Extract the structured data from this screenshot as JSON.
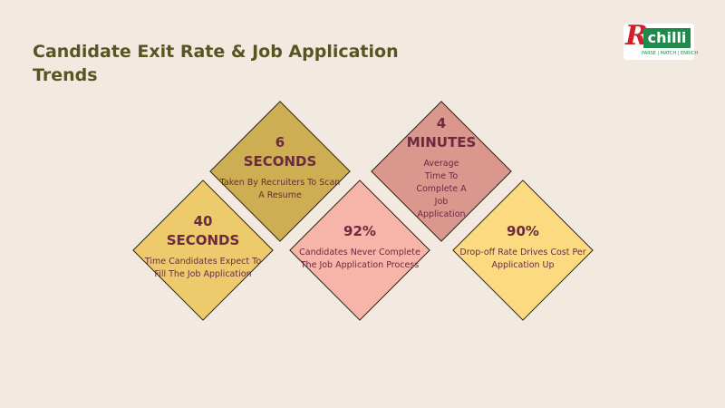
{
  "title": "Candidate Exit Rate & Job Application Trends",
  "logo": {
    "letter": "R",
    "text": "chilli",
    "tagline": "PARSE | MATCH | ENRICH"
  },
  "cards": [
    {
      "value": "6",
      "unit": "SECONDS",
      "desc": "Taken By Recruiters To Scan A Resume",
      "color": "#cdae52"
    },
    {
      "value": "40",
      "unit": "SECONDS",
      "desc": "Time Candidates Expect To Fill The Job Application",
      "color": "#edcb6c"
    },
    {
      "value": "92%",
      "unit": "",
      "desc": "Candidates Never Complete The Job Application Process",
      "color": "#f7b4a8"
    },
    {
      "value": "4",
      "unit": "MINUTES",
      "desc": "Average Time To Complete A Job Application",
      "color": "#d9978e"
    },
    {
      "value": "90%",
      "unit": "",
      "desc": "Drop-off Rate Drives Cost Per Application Up",
      "color": "#fcdb80"
    }
  ]
}
